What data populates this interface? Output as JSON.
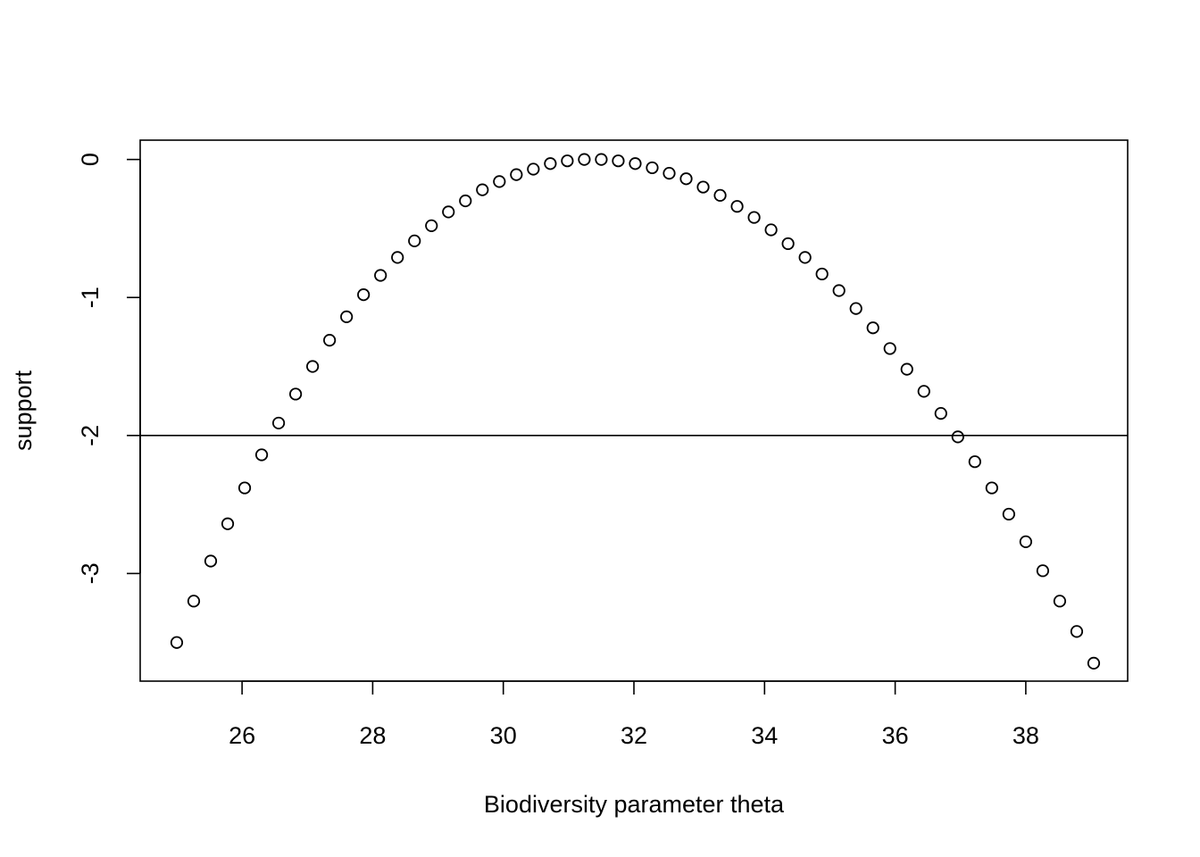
{
  "chart_data": {
    "type": "scatter",
    "title": "",
    "xlabel": "Biodiversity parameter theta",
    "ylabel": "support",
    "xlim": [
      24.44,
      39.56
    ],
    "ylim": [
      -3.78,
      0.14
    ],
    "x_ticks": [
      26,
      28,
      30,
      32,
      34,
      36,
      38
    ],
    "x_tick_labels": [
      "26",
      "28",
      "30",
      "32",
      "34",
      "36",
      "38"
    ],
    "y_ticks": [
      0,
      -1,
      -2,
      -3
    ],
    "y_tick_labels": [
      "0",
      "-1",
      "-2",
      "-3"
    ],
    "grid": false,
    "legend": "none",
    "reference_line": {
      "y": -2
    },
    "marker": "open-circle",
    "color": "#000000",
    "series": [
      {
        "points": [
          [
            25.0,
            -3.5
          ],
          [
            25.26,
            -3.2
          ],
          [
            25.52,
            -2.91
          ],
          [
            25.78,
            -2.64
          ],
          [
            26.04,
            -2.38
          ],
          [
            26.3,
            -2.14
          ],
          [
            26.56,
            -1.91
          ],
          [
            26.82,
            -1.7
          ],
          [
            27.08,
            -1.5
          ],
          [
            27.34,
            -1.31
          ],
          [
            27.6,
            -1.14
          ],
          [
            27.86,
            -0.98
          ],
          [
            28.12,
            -0.84
          ],
          [
            28.38,
            -0.71
          ],
          [
            28.64,
            -0.59
          ],
          [
            28.9,
            -0.48
          ],
          [
            29.16,
            -0.38
          ],
          [
            29.42,
            -0.3
          ],
          [
            29.68,
            -0.22
          ],
          [
            29.94,
            -0.16
          ],
          [
            30.2,
            -0.11
          ],
          [
            30.46,
            -0.07
          ],
          [
            30.72,
            -0.03
          ],
          [
            30.98,
            -0.01
          ],
          [
            31.24,
            0.0
          ],
          [
            31.5,
            0.0
          ],
          [
            31.76,
            -0.01
          ],
          [
            32.02,
            -0.03
          ],
          [
            32.28,
            -0.06
          ],
          [
            32.54,
            -0.1
          ],
          [
            32.8,
            -0.14
          ],
          [
            33.06,
            -0.2
          ],
          [
            33.32,
            -0.26
          ],
          [
            33.58,
            -0.34
          ],
          [
            33.84,
            -0.42
          ],
          [
            34.1,
            -0.51
          ],
          [
            34.36,
            -0.61
          ],
          [
            34.62,
            -0.71
          ],
          [
            34.88,
            -0.83
          ],
          [
            35.14,
            -0.95
          ],
          [
            35.4,
            -1.08
          ],
          [
            35.66,
            -1.22
          ],
          [
            35.92,
            -1.37
          ],
          [
            36.18,
            -1.52
          ],
          [
            36.44,
            -1.68
          ],
          [
            36.7,
            -1.84
          ],
          [
            36.96,
            -2.01
          ],
          [
            37.22,
            -2.19
          ],
          [
            37.48,
            -2.38
          ],
          [
            37.74,
            -2.57
          ],
          [
            38.0,
            -2.77
          ],
          [
            38.26,
            -2.98
          ],
          [
            38.52,
            -3.2
          ],
          [
            38.78,
            -3.42
          ],
          [
            39.04,
            -3.65
          ]
        ]
      }
    ]
  }
}
